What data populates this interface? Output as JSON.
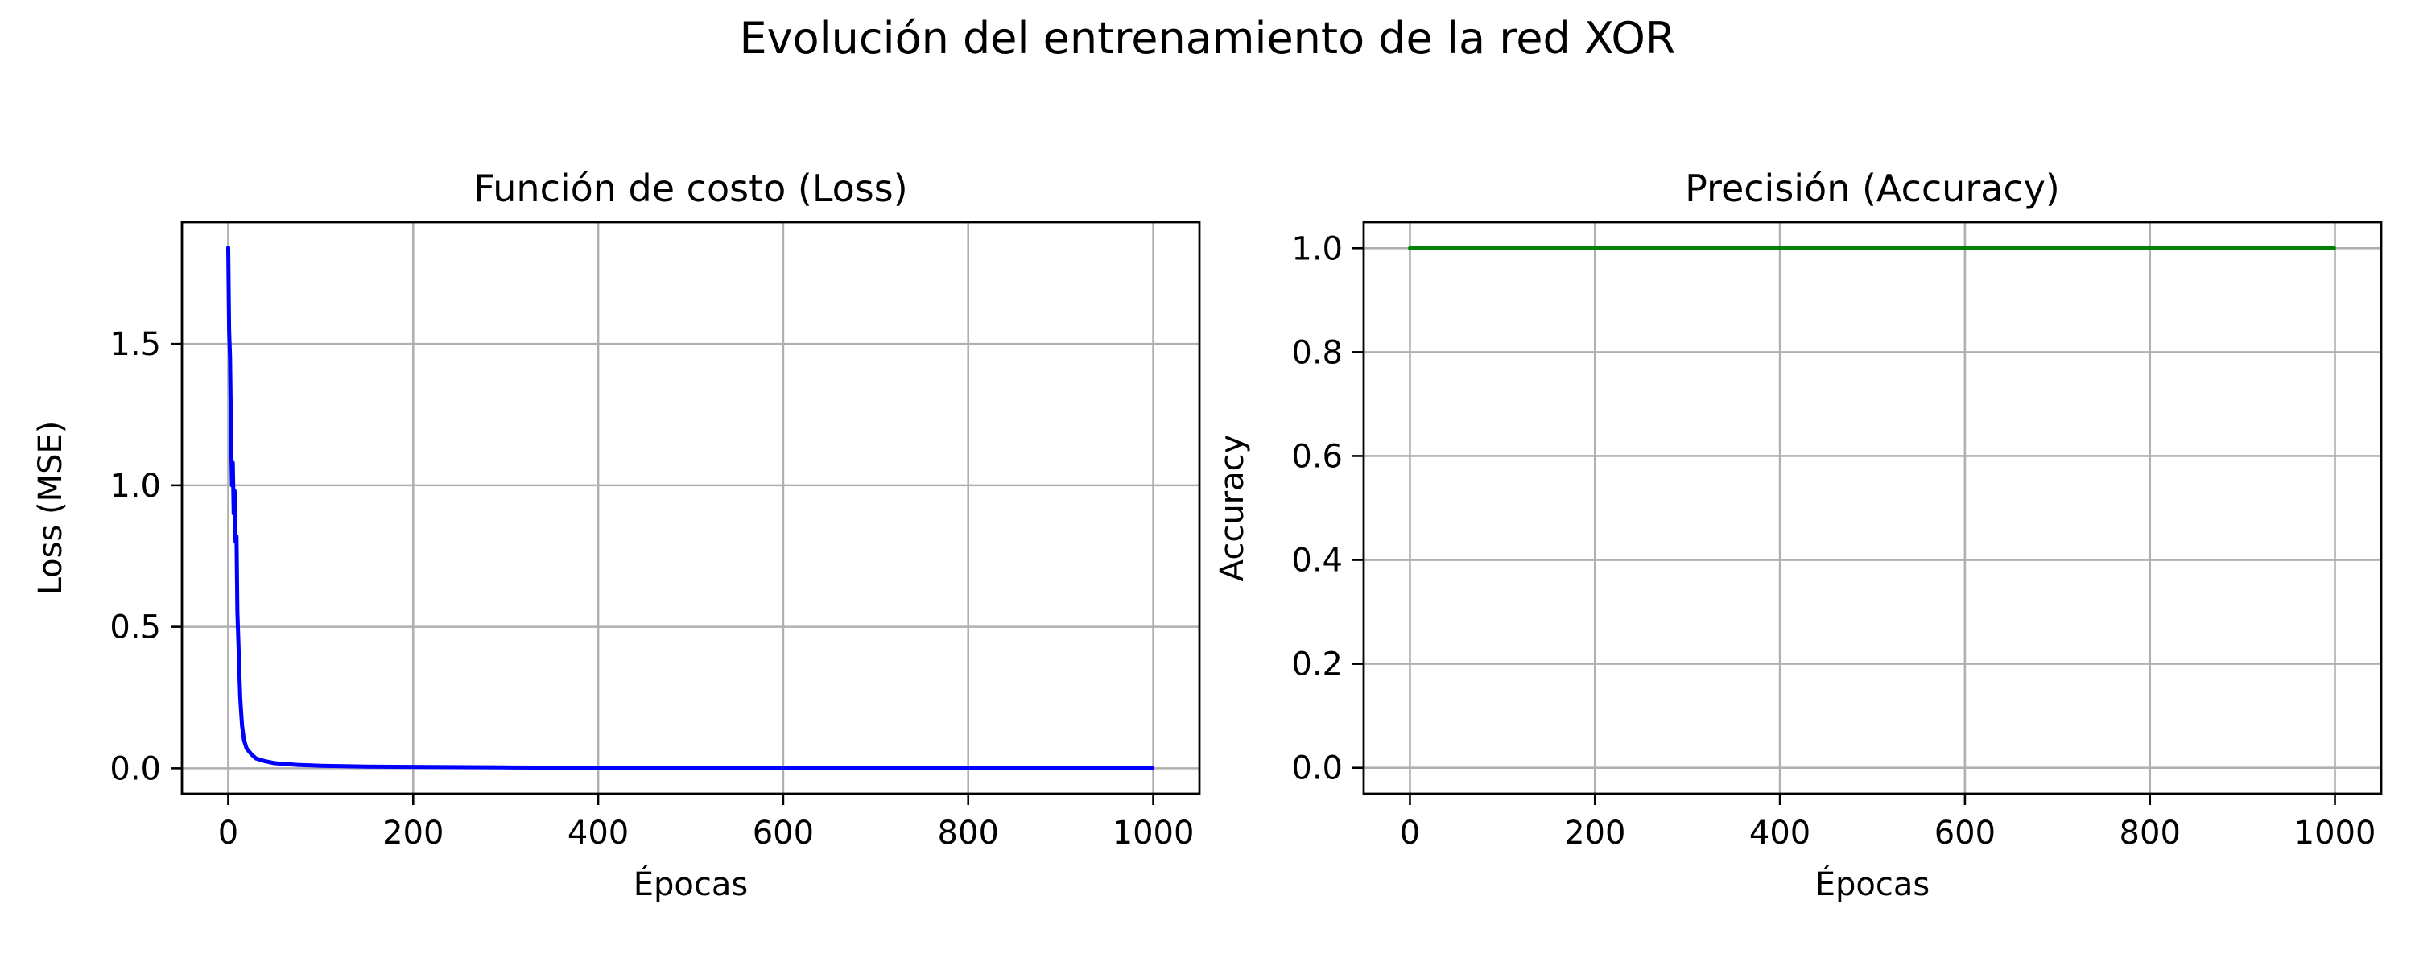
{
  "figure_title": "Evolución del entrenamiento de la red XOR",
  "chart_data": [
    {
      "type": "line",
      "title": "Función de costo (Loss)",
      "xlabel": "Épocas",
      "ylabel": "Loss (MSE)",
      "xlim": [
        -50,
        1050
      ],
      "ylim": [
        -0.09,
        1.93
      ],
      "xticks": [
        0,
        200,
        400,
        600,
        800,
        1000
      ],
      "xtick_labels": [
        "0",
        "200",
        "400",
        "600",
        "800",
        "1000"
      ],
      "yticks": [
        0.0,
        0.5,
        1.0,
        1.5
      ],
      "ytick_labels": [
        "0.0",
        "0.5",
        "1.0",
        "1.5"
      ],
      "grid": true,
      "legend": "none",
      "series": [
        {
          "color": "#0000ff",
          "x": [
            0,
            1,
            2,
            3,
            4,
            5,
            6,
            7,
            8,
            9,
            10,
            11,
            12,
            13,
            14,
            15,
            17,
            20,
            25,
            30,
            40,
            50,
            75,
            100,
            150,
            200,
            300,
            400,
            500,
            600,
            700,
            800,
            900,
            999
          ],
          "y": [
            1.84,
            1.55,
            1.45,
            1.2,
            1.0,
            1.08,
            0.9,
            0.98,
            0.8,
            0.82,
            0.55,
            0.45,
            0.35,
            0.25,
            0.2,
            0.15,
            0.1,
            0.07,
            0.05,
            0.035,
            0.025,
            0.018,
            0.012,
            0.009,
            0.006,
            0.005,
            0.003,
            0.002,
            0.002,
            0.0015,
            0.0012,
            0.001,
            0.001,
            0.0008
          ]
        }
      ]
    },
    {
      "type": "line",
      "title": "Precisión (Accuracy)",
      "xlabel": "Épocas",
      "ylabel": "Accuracy",
      "xlim": [
        -50,
        1050
      ],
      "ylim": [
        -0.05,
        1.05
      ],
      "xticks": [
        0,
        200,
        400,
        600,
        800,
        1000
      ],
      "xtick_labels": [
        "0",
        "200",
        "400",
        "600",
        "800",
        "1000"
      ],
      "yticks": [
        0.0,
        0.2,
        0.4,
        0.6,
        0.8,
        1.0
      ],
      "ytick_labels": [
        "0.0",
        "0.2",
        "0.4",
        "0.6",
        "0.8",
        "1.0"
      ],
      "grid": true,
      "legend": "none",
      "series": [
        {
          "color": "#008000",
          "x": [
            0,
            999
          ],
          "y": [
            1.0,
            1.0
          ]
        }
      ]
    }
  ]
}
